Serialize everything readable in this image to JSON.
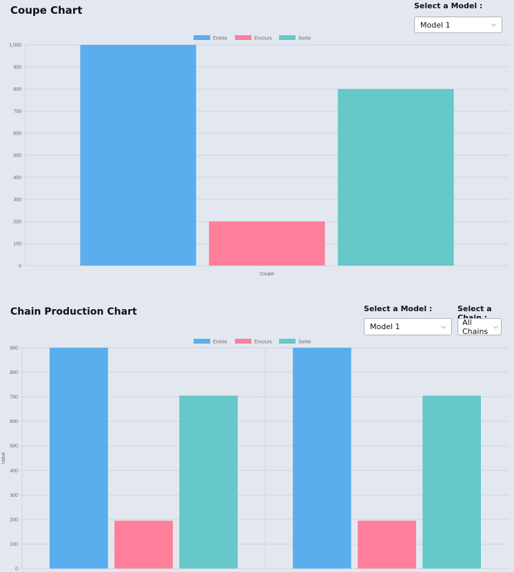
{
  "coupe": {
    "title": "Coupe Chart",
    "model_label": "Select a Model :",
    "model_value": "Model 1"
  },
  "chain": {
    "title": "Chain Production Chart",
    "model_label": "Select a Model :",
    "model_value": "Model 1",
    "chain_label": "Select a Chain :",
    "chain_value": "All Chains"
  },
  "chart_data": [
    {
      "type": "bar",
      "categories": [
        "Coupe"
      ],
      "series": [
        {
          "name": "Entrée",
          "values": [
            1000
          ]
        },
        {
          "name": "Encours",
          "values": [
            200
          ]
        },
        {
          "name": "Sortie",
          "values": [
            800
          ]
        }
      ],
      "colors": [
        "#5aaeed",
        "#fd7f9a",
        "#66c8c9"
      ],
      "ylim": [
        0,
        1000
      ],
      "yticks": [
        "0",
        "100",
        "200",
        "300",
        "400",
        "500",
        "600",
        "700",
        "800",
        "900",
        "1,000"
      ],
      "legend": "top",
      "grid": true
    },
    {
      "type": "bar",
      "categories": [
        "",
        ""
      ],
      "series": [
        {
          "name": "Entrée",
          "values": [
            900,
            900
          ]
        },
        {
          "name": "Encours",
          "values": [
            195,
            195
          ]
        },
        {
          "name": "Sortie",
          "values": [
            705,
            705
          ]
        }
      ],
      "colors": [
        "#5aaeed",
        "#fd7f9a",
        "#66c8c9"
      ],
      "ylim": [
        0,
        900
      ],
      "yticks": [
        "0",
        "100",
        "200",
        "300",
        "400",
        "500",
        "600",
        "700",
        "800",
        "900"
      ],
      "ylabel": "Value",
      "legend": "top",
      "grid": true
    }
  ]
}
